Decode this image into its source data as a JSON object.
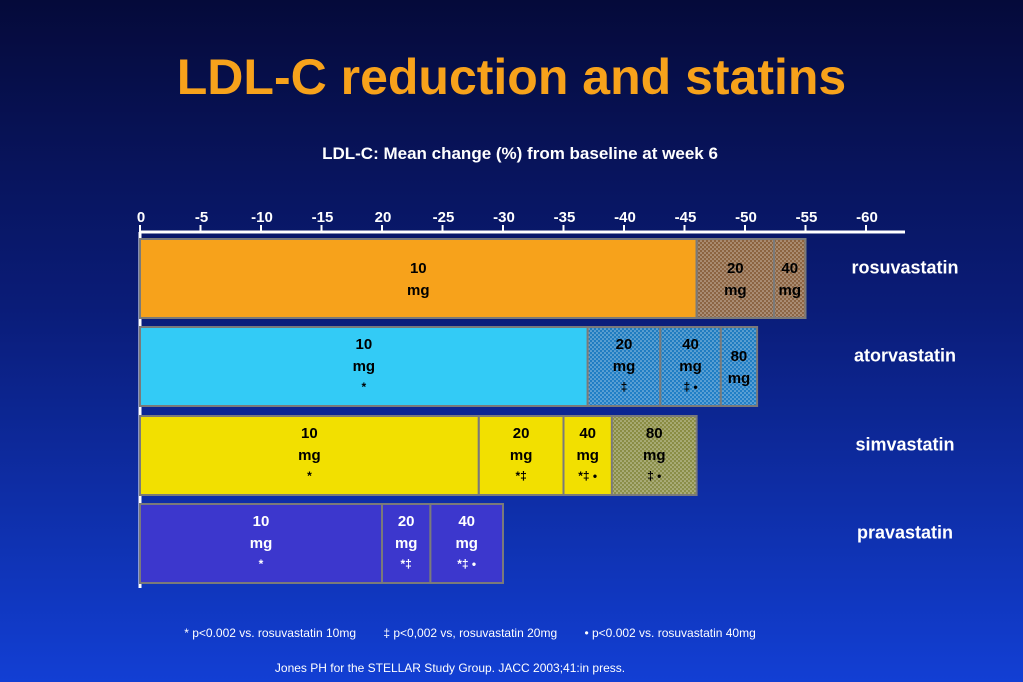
{
  "title": "LDL-C reduction and statins",
  "chart_data": {
    "type": "bar",
    "orientation": "horizontal-stacked",
    "title": "LDL-C: Mean change (%) from baseline at week 6",
    "x_ticks": [
      "0",
      "-5",
      "-10",
      "-15",
      "20",
      "-25",
      "-30",
      "-35",
      "-40",
      "-45",
      "-50",
      "-55",
      "-60"
    ],
    "xlim": [
      0,
      -60
    ],
    "unit": "%",
    "series": [
      {
        "name": "rosuvastatin",
        "color": "#f7a21b",
        "segments": [
          {
            "dose": "10",
            "unit": "mg",
            "value": -46,
            "marks": "",
            "style": "solid"
          },
          {
            "dose": "20",
            "unit": "mg",
            "value": -52.4,
            "marks": "",
            "style": "dotted"
          },
          {
            "dose": "40",
            "unit": "mg",
            "value": -55,
            "marks": "",
            "style": "dotted"
          }
        ]
      },
      {
        "name": "atorvastatin",
        "color": "#33cbf6",
        "segments": [
          {
            "dose": "10",
            "unit": "mg",
            "value": -37,
            "marks": "*",
            "style": "solid"
          },
          {
            "dose": "20",
            "unit": "mg",
            "value": -43,
            "marks": "‡",
            "style": "dotted"
          },
          {
            "dose": "40",
            "unit": "mg",
            "value": -48,
            "marks": "‡ •",
            "style": "dotted"
          },
          {
            "dose": "80",
            "unit": "mg",
            "value": -51,
            "marks": "",
            "style": "dotted"
          }
        ]
      },
      {
        "name": "simvastatin",
        "color": "#f2e000",
        "segments": [
          {
            "dose": "10",
            "unit": "mg",
            "value": -28,
            "marks": "*",
            "style": "solid"
          },
          {
            "dose": "20",
            "unit": "mg",
            "value": -35,
            "marks": "*‡",
            "style": "solid"
          },
          {
            "dose": "40",
            "unit": "mg",
            "value": -39,
            "marks": "*‡ •",
            "style": "solid"
          },
          {
            "dose": "80",
            "unit": "mg",
            "value": -46,
            "marks": "‡ •",
            "style": "dotted"
          }
        ]
      },
      {
        "name": "pravastatin",
        "color": "#3c37cd",
        "segments": [
          {
            "dose": "10",
            "unit": "mg",
            "value": -20,
            "marks": "*",
            "style": "solid"
          },
          {
            "dose": "20",
            "unit": "mg",
            "value": -24,
            "marks": "*‡",
            "style": "solid"
          },
          {
            "dose": "40",
            "unit": "mg",
            "value": -30,
            "marks": "*‡ •",
            "style": "solid"
          }
        ]
      }
    ]
  },
  "footnotes": [
    "* p<0.002 vs. rosuvastatin 10mg",
    "‡ p<0,002 vs, rosuvastatin 20mg",
    "• p<0.002 vs. rosuvastatin 40mg"
  ],
  "source": "Jones PH for the STELLAR Study Group. JACC 2003;41:in press."
}
